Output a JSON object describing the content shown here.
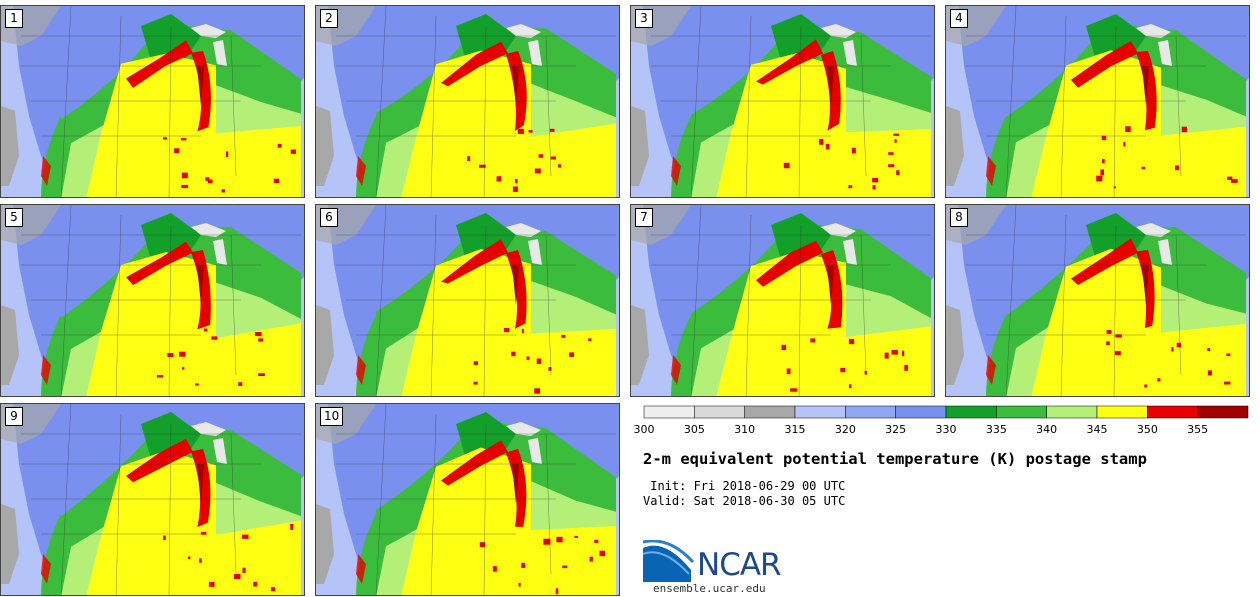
{
  "panels": [
    {
      "label": "1"
    },
    {
      "label": "2"
    },
    {
      "label": "3"
    },
    {
      "label": "4"
    },
    {
      "label": "5"
    },
    {
      "label": "6"
    },
    {
      "label": "7"
    },
    {
      "label": "8"
    },
    {
      "label": "9"
    },
    {
      "label": "10"
    }
  ],
  "colorbar": {
    "ticks": [
      "300",
      "305",
      "310",
      "315",
      "320",
      "325",
      "330",
      "335",
      "340",
      "345",
      "350",
      "355"
    ],
    "colors": [
      "#eeeeee",
      "#d8d8d8",
      "#a8a8a8",
      "#b4c4f8",
      "#90a8f4",
      "#7a90ef",
      "#12a02a",
      "#3cbc3c",
      "#b4f078",
      "#ffff14",
      "#e60000",
      "#a00000"
    ]
  },
  "map_colors": {
    "ocean": "#b4c4f8",
    "land_gray": "#a8a8a8",
    "cool": "#7a90ef",
    "green": "#3cbc3c",
    "dark_green": "#12a02a",
    "light_green": "#b4f078",
    "yellow": "#ffff14",
    "red": "#e60000",
    "dark_red": "#a00000",
    "lakes": "#e8e8e8"
  },
  "title": "2-m equivalent potential temperature (K) postage stamp",
  "init": " Init: Fri 2018-06-29 00 UTC",
  "valid": "Valid: Sat 2018-06-30 05 UTC",
  "logo": {
    "text": "NCAR",
    "site": "ensemble.ucar.edu"
  }
}
